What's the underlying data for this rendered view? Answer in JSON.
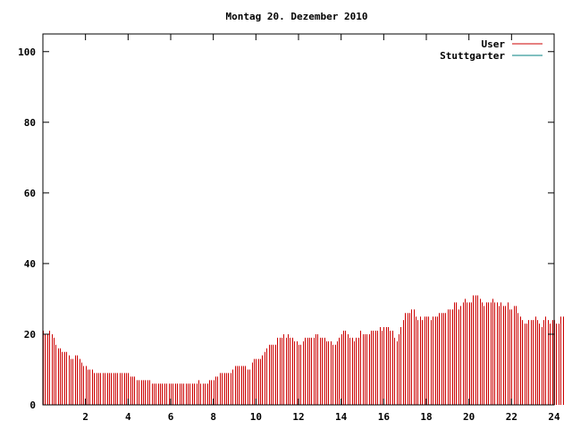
{
  "chart_data": {
    "type": "bar",
    "title": "Montag 20. Dezember 2010",
    "xlabel": "",
    "ylabel": "",
    "xlim": [
      0,
      24
    ],
    "ylim": [
      0,
      105
    ],
    "xticks": [
      2,
      4,
      6,
      8,
      10,
      12,
      14,
      16,
      18,
      20,
      22,
      24
    ],
    "yticks": [
      0,
      20,
      40,
      60,
      80,
      100
    ],
    "grid": false,
    "legend_position": "top-right",
    "series": [
      {
        "name": "User",
        "color": "#cc0000",
        "x_start": 0,
        "x_step": 0.1,
        "values": [
          21,
          20,
          20,
          21,
          20,
          19,
          17,
          16,
          16,
          15,
          15,
          15,
          14,
          13,
          13,
          14,
          14,
          13,
          12,
          11,
          11,
          10,
          10,
          10,
          9,
          9,
          9,
          9,
          9,
          9,
          9,
          9,
          9,
          9,
          9,
          9,
          9,
          9,
          9,
          9,
          9,
          8,
          8,
          8,
          7,
          7,
          7,
          7,
          7,
          7,
          7,
          6,
          6,
          6,
          6,
          6,
          6,
          6,
          6,
          6,
          6,
          6,
          6,
          6,
          6,
          6,
          6,
          6,
          6,
          6,
          6,
          6,
          6,
          7,
          6,
          6,
          6,
          6,
          7,
          7,
          7,
          8,
          8,
          9,
          9,
          9,
          9,
          9,
          9,
          10,
          11,
          11,
          11,
          11,
          11,
          11,
          10,
          10,
          12,
          13,
          13,
          13,
          13,
          14,
          15,
          16,
          17,
          17,
          17,
          17,
          19,
          19,
          19,
          20,
          19,
          20,
          19,
          19,
          18,
          18,
          17,
          17,
          18,
          19,
          19,
          19,
          19,
          19,
          20,
          20,
          19,
          19,
          19,
          18,
          18,
          18,
          17,
          17,
          18,
          19,
          20,
          21,
          21,
          20,
          19,
          19,
          18,
          19,
          19,
          21,
          20,
          20,
          20,
          20,
          21,
          21,
          21,
          21,
          22,
          21,
          22,
          22,
          22,
          21,
          21,
          19,
          18,
          20,
          22,
          24,
          26,
          26,
          26,
          27,
          27,
          25,
          24,
          25,
          24,
          25,
          25,
          25,
          24,
          25,
          25,
          25,
          26,
          26,
          26,
          26,
          27,
          27,
          27,
          29,
          29,
          27,
          28,
          29,
          30,
          29,
          29,
          29,
          31,
          31,
          31,
          30,
          29,
          28,
          29,
          29,
          29,
          30,
          29,
          29,
          28,
          29,
          28,
          28,
          29,
          27,
          27,
          28,
          28,
          26,
          25,
          24,
          23,
          23,
          24,
          24,
          24,
          25,
          24,
          23,
          22,
          24,
          25,
          24,
          23,
          24,
          24,
          23,
          23,
          25,
          25
        ]
      },
      {
        "name": "Stuttgarter",
        "color": "#008080",
        "x_start": 0,
        "x_step": 0.1,
        "values": []
      }
    ]
  }
}
